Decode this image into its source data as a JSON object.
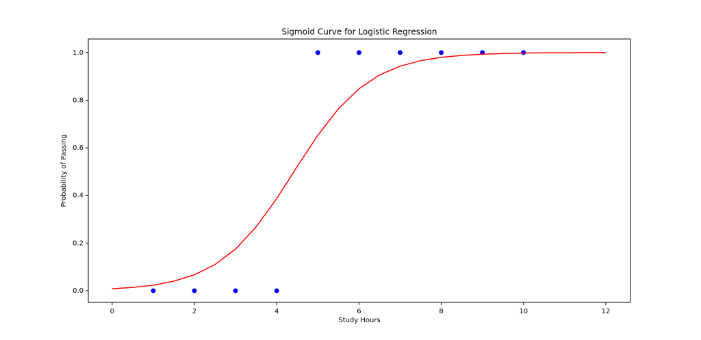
{
  "chart_data": {
    "type": "scatter",
    "title": "Sigmoid Curve for Logistic Regression",
    "xlabel": "Study Hours",
    "ylabel": "Probability of Passing",
    "x": [
      1,
      2,
      3,
      4,
      5,
      6,
      7,
      8,
      9,
      10
    ],
    "values": [
      0,
      0,
      0,
      0,
      1,
      1,
      1,
      1,
      1,
      1
    ],
    "color": "#0000ff",
    "curve": {
      "type": "line",
      "color": "#ff0000",
      "x": [
        0,
        0.5,
        1,
        1.5,
        2,
        2.5,
        3,
        3.5,
        4,
        4.5,
        5,
        5.5,
        6,
        6.5,
        7,
        7.5,
        8,
        8.5,
        9,
        9.5,
        10,
        10.5,
        11,
        11.5,
        12
      ],
      "values": [
        0.008,
        0.014,
        0.023,
        0.04,
        0.067,
        0.11,
        0.175,
        0.268,
        0.387,
        0.522,
        0.653,
        0.764,
        0.848,
        0.906,
        0.943,
        0.966,
        0.98,
        0.988,
        0.993,
        0.996,
        0.998,
        0.999,
        0.999,
        1.0,
        1.0
      ]
    },
    "xlim": [
      -0.58,
      12.6
    ],
    "xticks": [
      0,
      2,
      4,
      6,
      8,
      10,
      12
    ],
    "ylim": [
      -0.049,
      1.057
    ],
    "yticks": [
      {
        "value": 0,
        "label": "0.0"
      },
      0.2,
      0.4,
      0.6,
      0.8,
      {
        "value": 1,
        "label": "1.0"
      }
    ],
    "grid": false
  }
}
